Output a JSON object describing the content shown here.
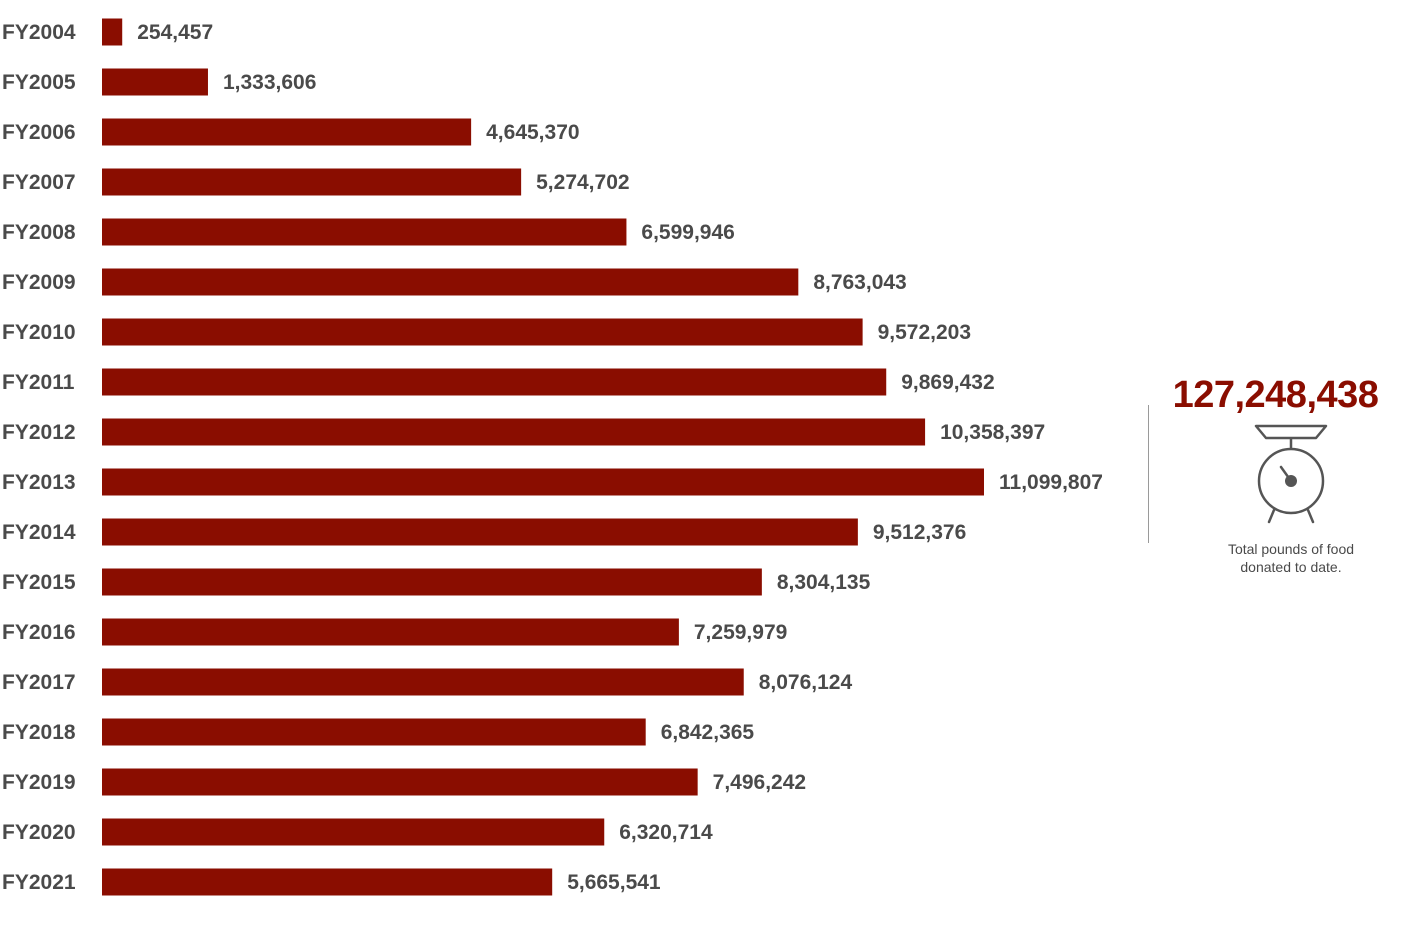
{
  "chart_data": {
    "type": "bar",
    "orientation": "horizontal",
    "categories": [
      "FY2004",
      "FY2005",
      "FY2006",
      "FY2007",
      "FY2008",
      "FY2009",
      "FY2010",
      "FY2011",
      "FY2012",
      "FY2013",
      "FY2014",
      "FY2015",
      "FY2016",
      "FY2017",
      "FY2018",
      "FY2019",
      "FY2020",
      "FY2021"
    ],
    "values": [
      254457,
      1333606,
      4645370,
      5274702,
      6599946,
      8763043,
      9572203,
      9869432,
      10358397,
      11099807,
      9512376,
      8304135,
      7259979,
      8076124,
      6842365,
      7496242,
      6320714,
      5665541
    ],
    "value_labels": [
      "254,457",
      "1,333,606",
      "4,645,370",
      "5,274,702",
      "6,599,946",
      "8,763,043",
      "9,572,203",
      "9,869,432",
      "10,358,397",
      "11,099,807",
      "9,512,376",
      "8,304,135",
      "7,259,979",
      "8,076,124",
      "6,842,365",
      "7,496,242",
      "6,320,714",
      "5,665,541"
    ],
    "xlim": [
      0,
      11099807
    ],
    "grid": false,
    "legend": "none",
    "bar_color": "#8a0d00"
  },
  "summary": {
    "total": "127,248,438",
    "caption_line1": "Total pounds of food",
    "caption_line2": "donated to date.",
    "icon": "scale-icon",
    "accent_color": "#8a0d00"
  }
}
